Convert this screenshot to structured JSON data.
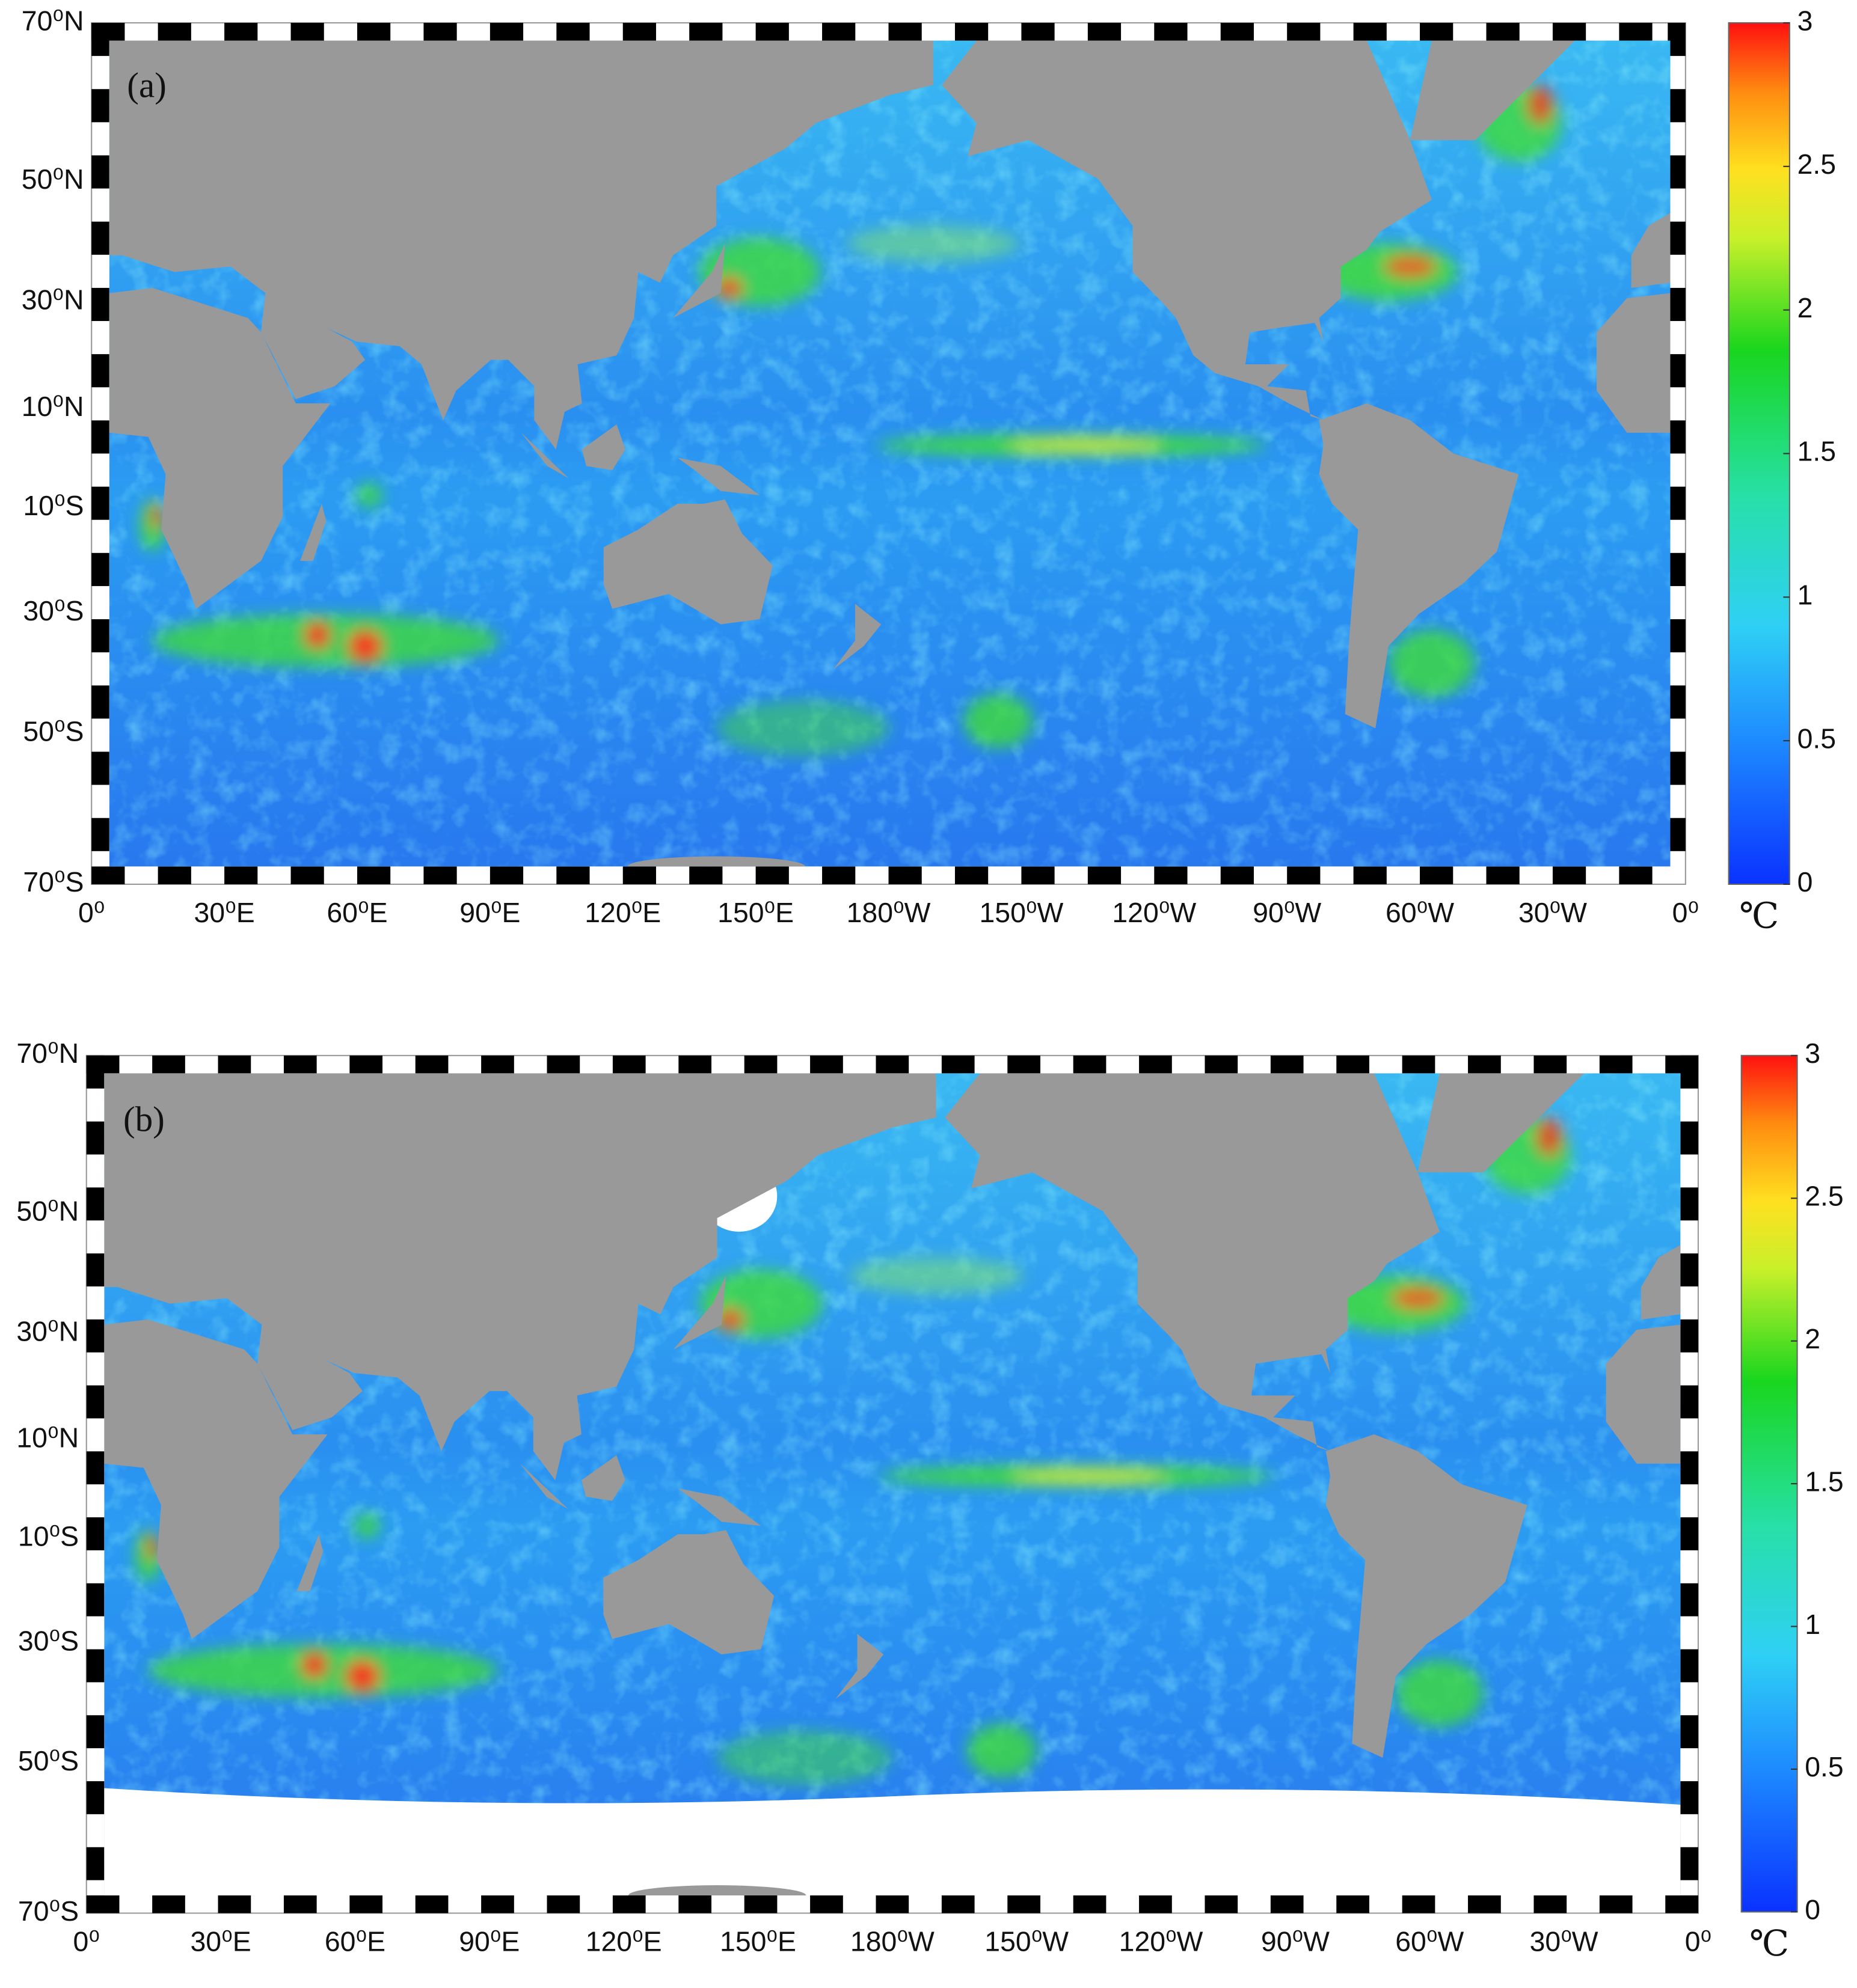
{
  "panels": [
    {
      "label": "(a)",
      "lat_labels": [
        "70⁰N",
        "50⁰N",
        "30⁰N",
        "10⁰N",
        "10⁰S",
        "30⁰S",
        "50⁰S",
        "70⁰S"
      ],
      "lon_labels": [
        "0⁰",
        "30⁰E",
        "60⁰E",
        "90⁰E",
        "120⁰E",
        "150⁰E",
        "180⁰W",
        "150⁰W",
        "120⁰W",
        "90⁰W",
        "60⁰W",
        "30⁰W",
        "0⁰"
      ],
      "colorbar": {
        "range": [
          0,
          3
        ],
        "ticks": [
          0,
          0.5,
          1,
          1.5,
          2,
          2.5,
          3
        ],
        "unit": "℃"
      }
    },
    {
      "label": "(b)",
      "lat_labels": [
        "70⁰N",
        "50⁰N",
        "30⁰N",
        "10⁰N",
        "10⁰S",
        "30⁰S",
        "50⁰S",
        "70⁰S"
      ],
      "lon_labels": [
        "0⁰",
        "30⁰E",
        "60⁰E",
        "90⁰E",
        "120⁰E",
        "150⁰E",
        "180⁰W",
        "150⁰W",
        "120⁰W",
        "90⁰W",
        "60⁰W",
        "30⁰W",
        "0⁰"
      ],
      "colorbar": {
        "range": [
          0,
          3
        ],
        "ticks": [
          0,
          0.5,
          1,
          1.5,
          2,
          2.5,
          3
        ],
        "unit": "℃"
      }
    }
  ]
}
